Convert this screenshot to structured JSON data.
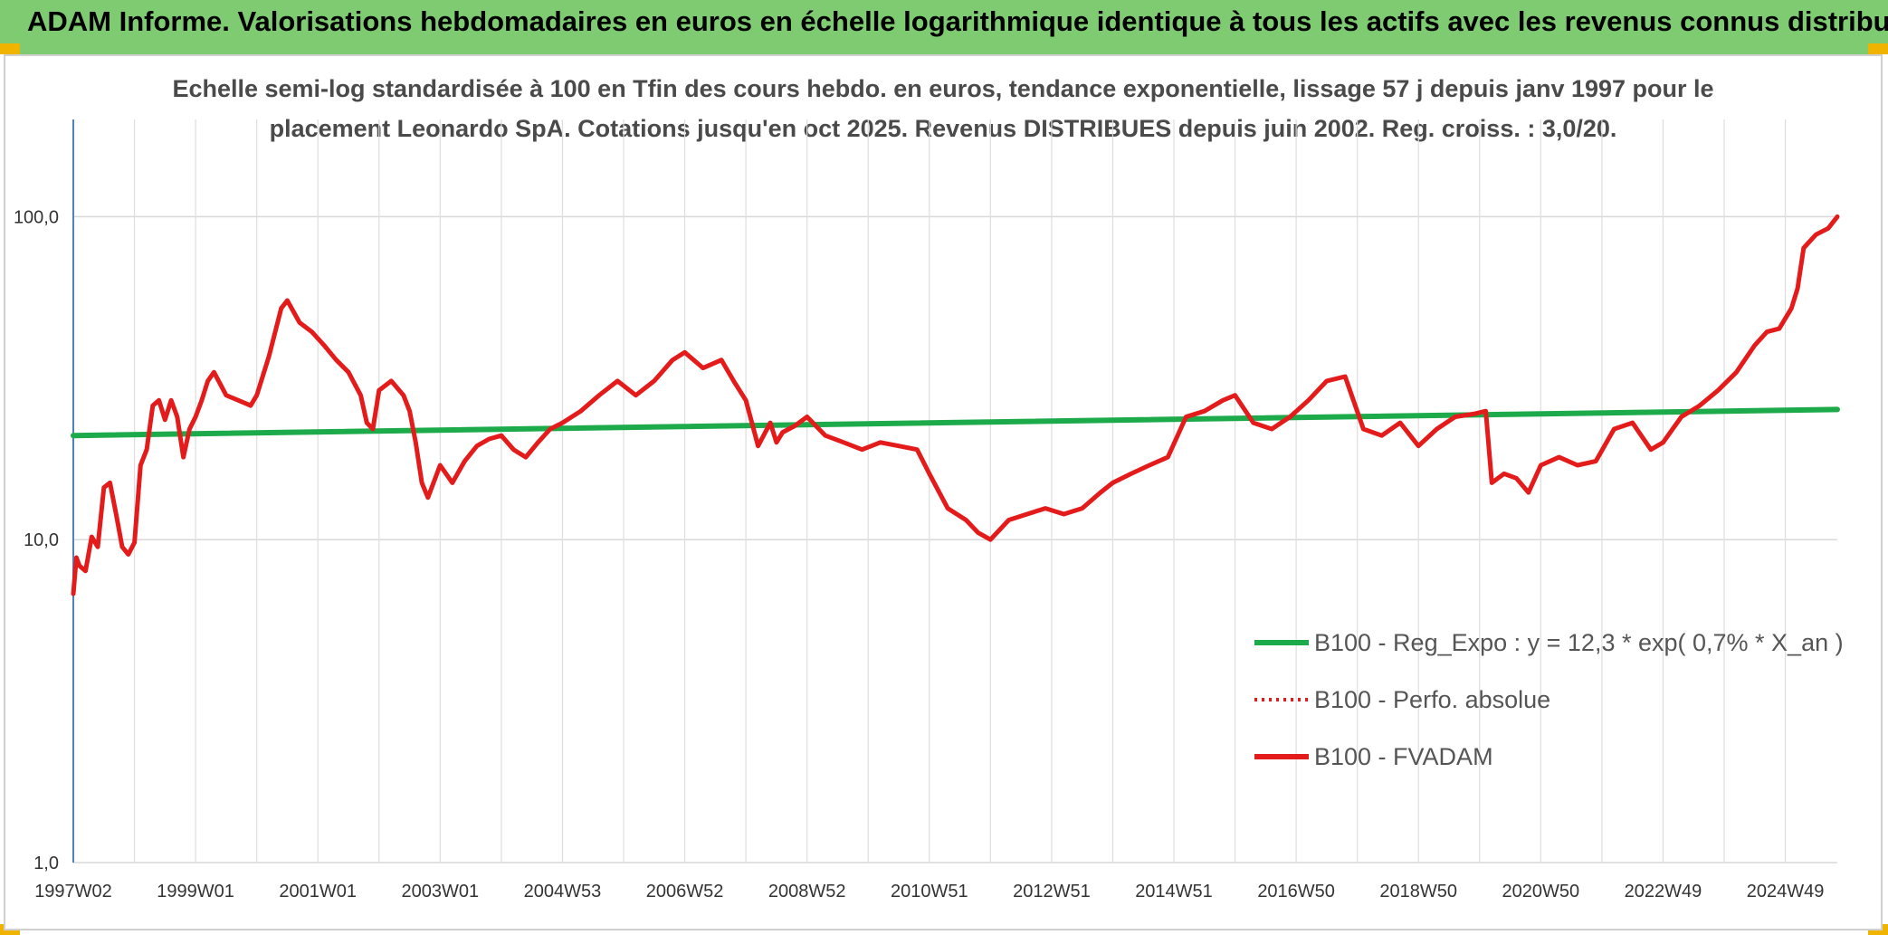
{
  "header": {
    "title": "ADAM Informe. Valorisations hebdomadaires en euros en échelle logarithmique identique à tous les actifs avec les revenus connus distribués"
  },
  "chart_data": {
    "type": "line",
    "title": "",
    "subtitle_line1": "Echelle semi-log standardisée à 100 en Tfin des cours hebdo. en euros, tendance exponentielle, lissage 57 j depuis janv 1997 pour le",
    "subtitle_line2": "placement Leonardo SpA. Cotations jusqu'en oct 2025. Revenus DISTRIBUES depuis juin 2002. Reg. croiss. : 3,0/20.",
    "y_scale": "log",
    "ylim": [
      1,
      200
    ],
    "xlim": [
      1997.0,
      2025.85
    ],
    "y_ticks": [
      {
        "value": 1,
        "label": "1,0"
      },
      {
        "value": 10,
        "label": "10,0"
      },
      {
        "value": 100,
        "label": "100,0"
      }
    ],
    "x_ticks": [
      {
        "x": 1997.0,
        "label": "1997W02"
      },
      {
        "x": 1999.0,
        "label": "1999W01"
      },
      {
        "x": 2001.0,
        "label": "2001W01"
      },
      {
        "x": 2003.0,
        "label": "2003W01"
      },
      {
        "x": 2005.0,
        "label": "2004W53"
      },
      {
        "x": 2007.0,
        "label": "2006W52"
      },
      {
        "x": 2009.0,
        "label": "2008W52"
      },
      {
        "x": 2011.0,
        "label": "2010W51"
      },
      {
        "x": 2013.0,
        "label": "2012W51"
      },
      {
        "x": 2015.0,
        "label": "2014W51"
      },
      {
        "x": 2017.0,
        "label": "2016W50"
      },
      {
        "x": 2019.0,
        "label": "2018W50"
      },
      {
        "x": 2021.0,
        "label": "2020W50"
      },
      {
        "x": 2023.0,
        "label": "2022W49"
      },
      {
        "x": 2025.0,
        "label": "2024W49"
      }
    ],
    "legend_position": "bottom-right",
    "series": [
      {
        "name": "B100 - Reg_Expo : y = 12,3 * exp( 0,7% *  X_an )",
        "color": "#1daa4a",
        "style": "solid",
        "x": [
          1997.0,
          2025.85
        ],
        "y": [
          21.0,
          25.3
        ]
      },
      {
        "name": "B100 - Perfo. absolue",
        "color": "#e41b1b",
        "style": "dotted",
        "x": [],
        "y": []
      },
      {
        "name": "B100 - FVADAM",
        "color": "#e41b1b",
        "style": "solid",
        "x": [
          1997.0,
          1997.05,
          1997.1,
          1997.2,
          1997.3,
          1997.4,
          1997.5,
          1997.6,
          1997.7,
          1997.8,
          1997.9,
          1998.0,
          1998.1,
          1998.2,
          1998.3,
          1998.4,
          1998.5,
          1998.6,
          1998.7,
          1998.8,
          1998.9,
          1999.0,
          1999.1,
          1999.2,
          1999.3,
          1999.5,
          1999.7,
          1999.9,
          2000.0,
          2000.2,
          2000.4,
          2000.5,
          2000.7,
          2000.9,
          2001.1,
          2001.3,
          2001.5,
          2001.7,
          2001.8,
          2001.9,
          2002.0,
          2002.2,
          2002.4,
          2002.5,
          2002.6,
          2002.7,
          2002.8,
          2003.0,
          2003.2,
          2003.4,
          2003.6,
          2003.8,
          2004.0,
          2004.2,
          2004.4,
          2004.6,
          2004.8,
          2005.0,
          2005.3,
          2005.6,
          2005.9,
          2006.2,
          2006.5,
          2006.8,
          2007.0,
          2007.3,
          2007.6,
          2007.8,
          2008.0,
          2008.2,
          2008.4,
          2008.5,
          2008.6,
          2008.8,
          2009.0,
          2009.3,
          2009.6,
          2009.9,
          2010.2,
          2010.5,
          2010.8,
          2011.0,
          2011.3,
          2011.6,
          2011.8,
          2012.0,
          2012.3,
          2012.6,
          2012.9,
          2013.2,
          2013.5,
          2013.8,
          2014.0,
          2014.3,
          2014.6,
          2014.9,
          2015.2,
          2015.5,
          2015.8,
          2016.0,
          2016.3,
          2016.6,
          2016.9,
          2017.2,
          2017.5,
          2017.8,
          2018.1,
          2018.4,
          2018.7,
          2019.0,
          2019.3,
          2019.6,
          2019.9,
          2020.1,
          2020.2,
          2020.4,
          2020.6,
          2020.8,
          2021.0,
          2021.3,
          2021.6,
          2021.9,
          2022.2,
          2022.5,
          2022.8,
          2023.0,
          2023.3,
          2023.6,
          2023.9,
          2024.2,
          2024.5,
          2024.7,
          2024.9,
          2025.1,
          2025.2,
          2025.3,
          2025.5,
          2025.7,
          2025.85
        ],
        "y": [
          6.8,
          8.8,
          8.3,
          8.0,
          10.2,
          9.5,
          14.5,
          15.0,
          12.0,
          9.5,
          9.0,
          9.8,
          17.0,
          19.0,
          26.0,
          27.0,
          23.5,
          27.0,
          24.0,
          18.0,
          22.0,
          24.0,
          27.0,
          31.0,
          33.0,
          28.0,
          27.0,
          26.0,
          28.0,
          37.0,
          52.0,
          55.0,
          47.0,
          44.0,
          40.0,
          36.0,
          33.0,
          28.0,
          23.0,
          22.0,
          29.0,
          31.0,
          28.0,
          25.0,
          20.0,
          15.0,
          13.5,
          17.0,
          15.0,
          17.5,
          19.5,
          20.5,
          21.0,
          19.0,
          18.0,
          20.0,
          22.0,
          23.0,
          25.0,
          28.0,
          31.0,
          28.0,
          31.0,
          36.0,
          38.0,
          34.0,
          36.0,
          31.0,
          27.0,
          19.5,
          23.0,
          20.0,
          21.5,
          22.5,
          24.0,
          21.0,
          20.0,
          19.0,
          20.0,
          19.5,
          19.0,
          16.0,
          12.5,
          11.5,
          10.5,
          10.0,
          11.5,
          12.0,
          12.5,
          12.0,
          12.5,
          14.0,
          15.0,
          16.0,
          17.0,
          18.0,
          24.0,
          25.0,
          27.0,
          28.0,
          23.0,
          22.0,
          24.0,
          27.0,
          31.0,
          32.0,
          22.0,
          21.0,
          23.0,
          19.5,
          22.0,
          24.0,
          24.5,
          25.0,
          15.0,
          16.0,
          15.5,
          14.0,
          17.0,
          18.0,
          17.0,
          17.5,
          22.0,
          23.0,
          19.0,
          20.0,
          24.0,
          26.0,
          29.0,
          33.0,
          40.0,
          44.0,
          45.0,
          52.0,
          60.0,
          80.0,
          88.0,
          92.0,
          100.0
        ]
      }
    ]
  }
}
